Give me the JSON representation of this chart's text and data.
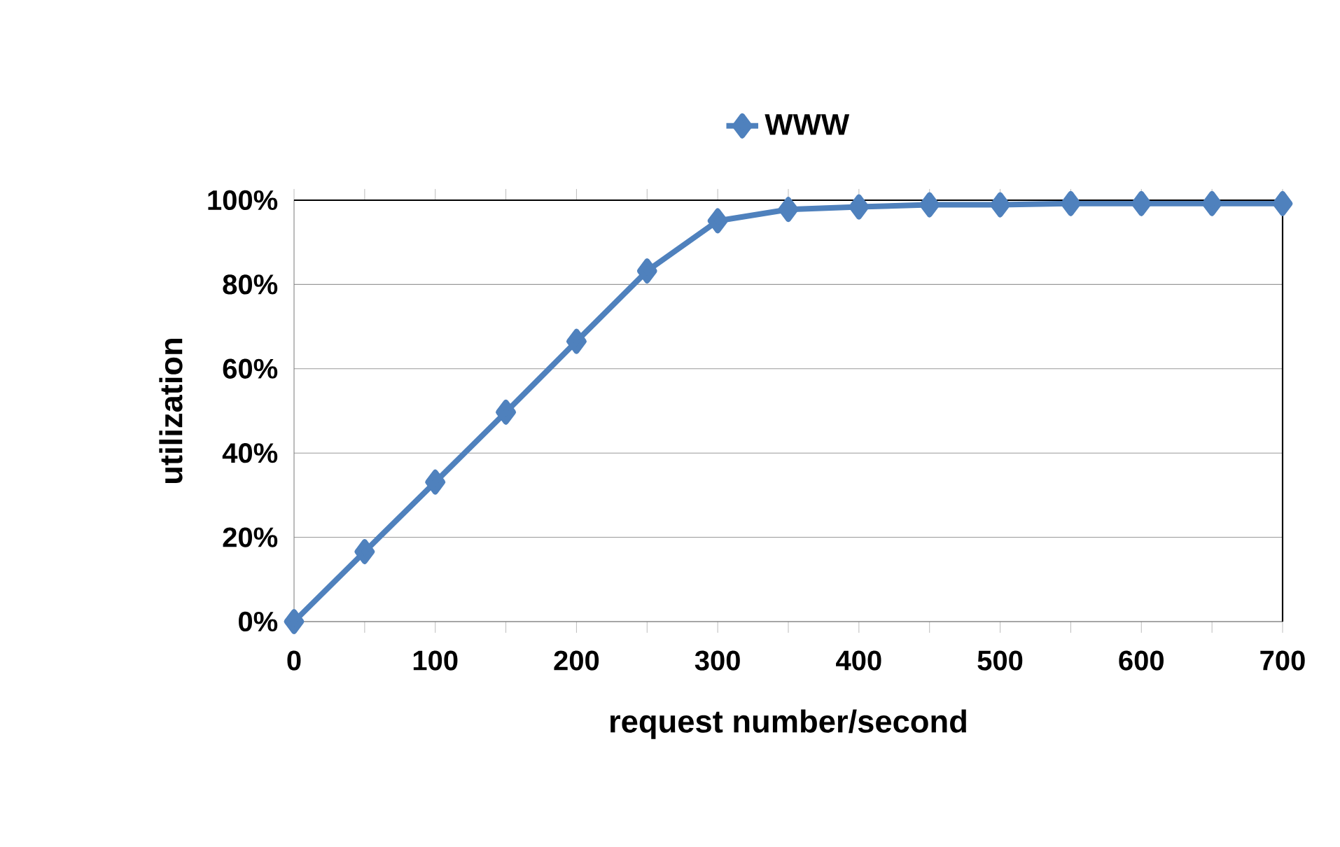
{
  "chart_data": {
    "type": "line",
    "xlabel": "request number/second",
    "ylabel": "utilization",
    "x": [
      0,
      50,
      100,
      150,
      200,
      250,
      300,
      350,
      400,
      450,
      500,
      550,
      600,
      650,
      700
    ],
    "series": [
      {
        "name": "WWW",
        "color": "#4f81bd",
        "values": [
          0,
          16.6,
          33.1,
          49.7,
          66.5,
          83.2,
          95.1,
          97.8,
          98.4,
          98.9,
          98.9,
          99.2,
          99.2,
          99.2,
          99.2
        ]
      }
    ],
    "xlim": [
      0,
      700
    ],
    "ylim": [
      0,
      100
    ],
    "xticks": [
      0,
      {
        "value": 50,
        "label": null
      },
      100,
      {
        "value": 150,
        "label": null
      },
      200,
      {
        "value": 250,
        "label": null
      },
      300,
      {
        "value": 350,
        "label": null
      },
      400,
      {
        "value": 450,
        "label": null
      },
      500,
      {
        "value": 550,
        "label": null
      },
      600,
      {
        "value": 650,
        "label": null
      },
      700
    ],
    "yticks": [
      {
        "value": 0,
        "label": "0%"
      },
      {
        "value": 20,
        "label": "20%"
      },
      {
        "value": 40,
        "label": "40%"
      },
      {
        "value": 60,
        "label": "60%"
      },
      {
        "value": 80,
        "label": "80%"
      },
      {
        "value": 100,
        "label": "100%"
      }
    ],
    "grid": "y",
    "legend": "top",
    "marker": "diamond",
    "line_style": "solid"
  }
}
